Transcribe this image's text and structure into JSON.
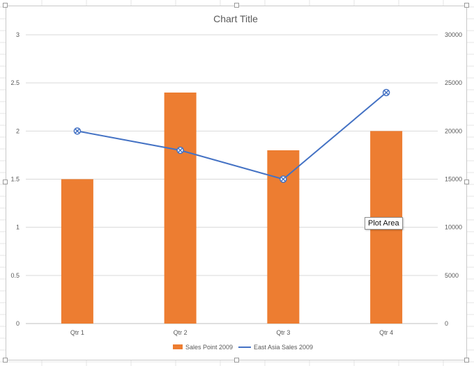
{
  "chart_data": {
    "type": "bar",
    "title": "Chart Title",
    "categories": [
      "Qtr 1",
      "Qtr 2",
      "Qtr 3",
      "Qtr 4"
    ],
    "series": [
      {
        "name": "Sales Point 2009",
        "type": "bar",
        "axis": "left",
        "values": [
          1.5,
          2.4,
          1.8,
          2.0
        ],
        "color": "#ED7D31"
      },
      {
        "name": "East Asia Sales 2009",
        "type": "line",
        "axis": "right",
        "values": [
          20000,
          18000,
          15000,
          24000
        ],
        "color": "#4472C4"
      }
    ],
    "ylim": [
      0,
      3
    ],
    "y2lim": [
      0,
      30000
    ],
    "yticks": [
      "0",
      "0.5",
      "1",
      "1.5",
      "2",
      "2.5",
      "3"
    ],
    "y2ticks": [
      "0",
      "5000",
      "10000",
      "15000",
      "20000",
      "25000",
      "30000"
    ],
    "grid": true,
    "legend": "bottom"
  },
  "tooltip": {
    "label": "Plot Area"
  }
}
